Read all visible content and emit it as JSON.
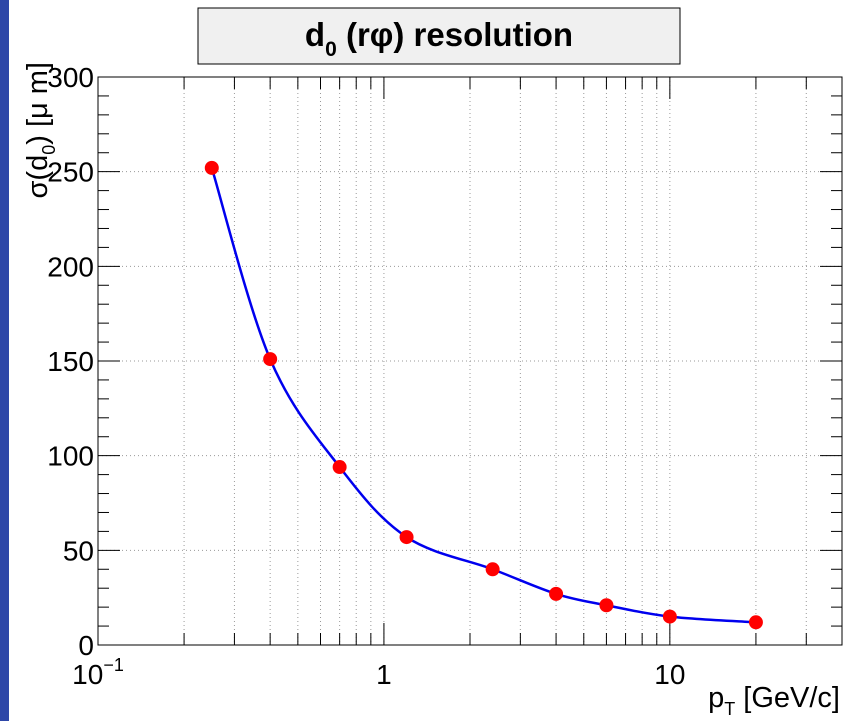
{
  "colors": {
    "frame": "#000000",
    "grid": "#9a9a9a",
    "curve": "#0000ee",
    "marker": "#ff0000",
    "title_box": "#f0f0f0",
    "side_strip": "#2e47a8"
  },
  "chart_data": {
    "type": "line",
    "title": {
      "prefix": "d",
      "sub": "0",
      "suffix": " (rφ) resolution"
    },
    "xlabel": {
      "main": "p",
      "sub": "T",
      "unit": " [GeV/c]"
    },
    "ylabel": {
      "pre": "σ(d",
      "sub": "0",
      "post": ") [μ m]"
    },
    "x_scale": "log",
    "xlim": [
      0.1,
      40
    ],
    "ylim": [
      0,
      300
    ],
    "grid": true,
    "x_ticks": [
      {
        "value": 0.1,
        "base": "10",
        "exp": "−1"
      },
      {
        "value": 1,
        "base": "1",
        "exp": ""
      },
      {
        "value": 10,
        "base": "10",
        "exp": ""
      }
    ],
    "y_ticks": [
      0,
      50,
      100,
      150,
      200,
      250,
      300
    ],
    "series": [
      {
        "x": [
          0.25,
          0.4,
          0.7,
          1.2,
          2.4,
          4.0,
          6.0,
          10.0,
          20.0
        ],
        "y": [
          252,
          151,
          94,
          57,
          40,
          27,
          21,
          15,
          12
        ]
      }
    ]
  }
}
